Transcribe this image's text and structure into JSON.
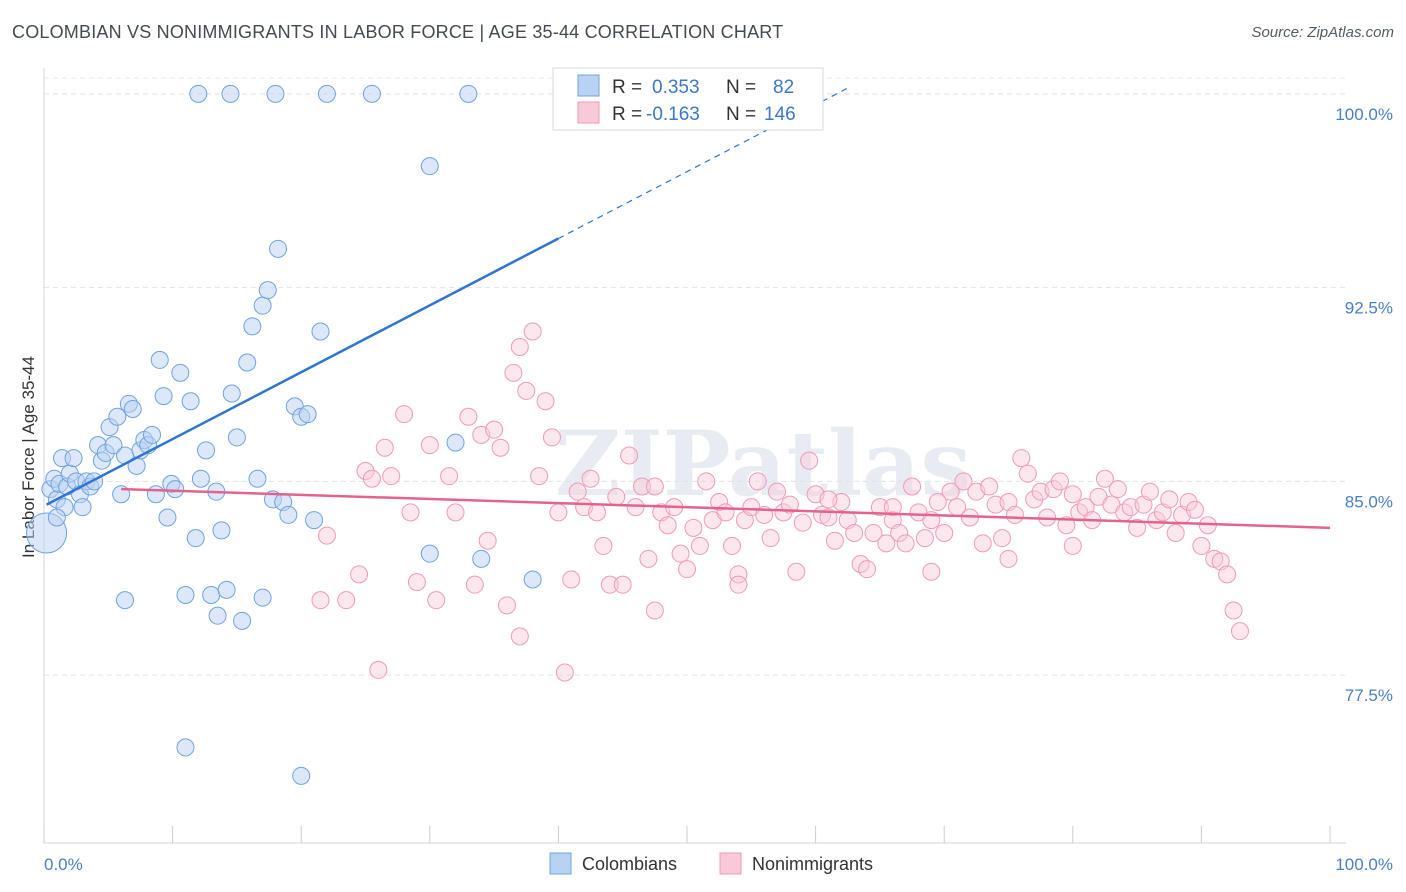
{
  "title": "COLOMBIAN VS NONIMMIGRANTS IN LABOR FORCE | AGE 35-44 CORRELATION CHART",
  "source": "Source: ZipAtlas.com",
  "watermark": "ZIPatlas",
  "colors": {
    "blue": "#6fa3e0",
    "blue_line": "#2f74d0",
    "pink": "#f19ab8",
    "pink_line": "#e4628f"
  },
  "chart_data": {
    "type": "scatter",
    "ylabel": "In Labor Force | Age 35-44",
    "xlim": [
      0,
      100
    ],
    "ylim": [
      71.0,
      101.0
    ],
    "y_ticks": [
      {
        "value": 100.0,
        "label": "100.0%"
      },
      {
        "value": 92.5,
        "label": "92.5%"
      },
      {
        "value": 85.0,
        "label": "85.0%"
      },
      {
        "value": 77.5,
        "label": "77.5%"
      }
    ],
    "x_tick_labels": [
      "0.0%",
      "100.0%"
    ],
    "legend": {
      "rows": [
        {
          "r_label": "R = ",
          "r_value": "0.353",
          "n_label": "N = ",
          "n_value": "82"
        },
        {
          "r_label": "R = ",
          "r_value": "-0.163",
          "n_label": "N = ",
          "n_value": "146"
        }
      ]
    },
    "series": [
      {
        "name": "Colombians",
        "trend": {
          "x0": 0.2,
          "y0": 84.1,
          "x1": 40.0,
          "y1": 94.4,
          "x_dash_end": 62.5
        },
        "points": [
          [
            0.2,
            83.0
          ],
          [
            0.5,
            84.7
          ],
          [
            0.8,
            85.1
          ],
          [
            1.0,
            84.3
          ],
          [
            1.2,
            84.9
          ],
          [
            1.4,
            85.9
          ],
          [
            1.6,
            84.0
          ],
          [
            1.8,
            84.8
          ],
          [
            2.0,
            85.3
          ],
          [
            2.3,
            85.9
          ],
          [
            2.5,
            85.0
          ],
          [
            2.8,
            84.5
          ],
          [
            3.0,
            84.0
          ],
          [
            3.3,
            85.0
          ],
          [
            3.6,
            84.8
          ],
          [
            3.9,
            85.0
          ],
          [
            4.2,
            86.4
          ],
          [
            4.5,
            85.8
          ],
          [
            4.8,
            86.1
          ],
          [
            5.1,
            87.1
          ],
          [
            5.4,
            86.4
          ],
          [
            5.7,
            87.5
          ],
          [
            6.0,
            84.5
          ],
          [
            6.3,
            86.0
          ],
          [
            6.6,
            88.0
          ],
          [
            6.9,
            87.8
          ],
          [
            7.2,
            85.6
          ],
          [
            7.5,
            86.2
          ],
          [
            7.8,
            86.6
          ],
          [
            8.1,
            86.4
          ],
          [
            8.4,
            86.8
          ],
          [
            8.7,
            84.5
          ],
          [
            9.0,
            89.7
          ],
          [
            9.3,
            88.3
          ],
          [
            9.6,
            83.6
          ],
          [
            9.9,
            84.9
          ],
          [
            10.2,
            84.7
          ],
          [
            10.6,
            89.2
          ],
          [
            11.0,
            80.6
          ],
          [
            11.4,
            88.1
          ],
          [
            11.8,
            82.8
          ],
          [
            12.2,
            85.1
          ],
          [
            12.6,
            86.2
          ],
          [
            13.0,
            80.6
          ],
          [
            13.4,
            84.6
          ],
          [
            13.8,
            83.1
          ],
          [
            14.2,
            80.8
          ],
          [
            14.6,
            88.4
          ],
          [
            15.0,
            86.7
          ],
          [
            15.4,
            79.6
          ],
          [
            15.8,
            89.6
          ],
          [
            16.2,
            91.0
          ],
          [
            16.6,
            85.1
          ],
          [
            17.0,
            91.8
          ],
          [
            17.4,
            92.4
          ],
          [
            17.8,
            84.3
          ],
          [
            18.2,
            94.0
          ],
          [
            18.6,
            84.2
          ],
          [
            19.0,
            83.7
          ],
          [
            19.5,
            87.9
          ],
          [
            20.0,
            87.5
          ],
          [
            20.5,
            87.6
          ],
          [
            21.0,
            83.5
          ],
          [
            21.5,
            90.8
          ],
          [
            11.0,
            74.7
          ],
          [
            20.0,
            73.6
          ],
          [
            13.5,
            79.8
          ],
          [
            17.0,
            80.5
          ],
          [
            32.0,
            86.5
          ],
          [
            34.0,
            82.0
          ],
          [
            38.0,
            81.2
          ],
          [
            30.0,
            82.2
          ],
          [
            12.0,
            100.0
          ],
          [
            14.5,
            100.0
          ],
          [
            18.0,
            100.0
          ],
          [
            22.0,
            100.0
          ],
          [
            25.5,
            100.0
          ],
          [
            33.0,
            100.0
          ],
          [
            41.5,
            100.0
          ],
          [
            30.0,
            97.2
          ],
          [
            1.0,
            83.6
          ],
          [
            6.3,
            80.4
          ]
        ]
      },
      {
        "name": "Nonimmigrants",
        "trend": {
          "x0": 6.0,
          "y0": 84.7,
          "x1": 100.0,
          "y1": 83.2
        },
        "points": [
          [
            21.5,
            80.4
          ],
          [
            22.0,
            82.9
          ],
          [
            23.5,
            80.4
          ],
          [
            24.5,
            81.4
          ],
          [
            25.0,
            85.4
          ],
          [
            25.5,
            85.1
          ],
          [
            26.0,
            77.7
          ],
          [
            26.5,
            86.3
          ],
          [
            27.0,
            85.2
          ],
          [
            28.0,
            87.6
          ],
          [
            28.5,
            83.8
          ],
          [
            29.0,
            81.1
          ],
          [
            30.0,
            86.4
          ],
          [
            30.5,
            80.4
          ],
          [
            31.5,
            85.2
          ],
          [
            32.0,
            83.8
          ],
          [
            33.0,
            87.5
          ],
          [
            33.5,
            81.0
          ],
          [
            34.0,
            86.8
          ],
          [
            34.5,
            82.7
          ],
          [
            35.0,
            87.0
          ],
          [
            35.5,
            86.3
          ],
          [
            36.0,
            80.2
          ],
          [
            36.5,
            89.2
          ],
          [
            37.0,
            90.2
          ],
          [
            37.5,
            88.5
          ],
          [
            38.0,
            90.8
          ],
          [
            38.5,
            85.2
          ],
          [
            39.0,
            88.1
          ],
          [
            39.5,
            86.7
          ],
          [
            40.0,
            83.8
          ],
          [
            40.5,
            77.6
          ],
          [
            41.0,
            81.2
          ],
          [
            41.5,
            84.6
          ],
          [
            42.0,
            84.0
          ],
          [
            42.5,
            85.1
          ],
          [
            43.0,
            83.8
          ],
          [
            43.5,
            82.5
          ],
          [
            44.0,
            81.0
          ],
          [
            44.5,
            84.4
          ],
          [
            45.0,
            81.0
          ],
          [
            45.5,
            86.0
          ],
          [
            46.0,
            84.0
          ],
          [
            46.5,
            84.8
          ],
          [
            47.0,
            82.0
          ],
          [
            47.5,
            84.8
          ],
          [
            48.0,
            83.8
          ],
          [
            48.5,
            83.3
          ],
          [
            49.0,
            84.0
          ],
          [
            49.5,
            82.2
          ],
          [
            50.0,
            81.6
          ],
          [
            50.5,
            83.2
          ],
          [
            51.0,
            82.5
          ],
          [
            51.5,
            85.0
          ],
          [
            52.0,
            83.5
          ],
          [
            52.5,
            84.2
          ],
          [
            53.0,
            83.8
          ],
          [
            53.5,
            82.5
          ],
          [
            54.0,
            81.4
          ],
          [
            54.5,
            83.5
          ],
          [
            55.0,
            84.0
          ],
          [
            55.5,
            85.0
          ],
          [
            56.0,
            83.7
          ],
          [
            56.5,
            82.8
          ],
          [
            57.0,
            84.6
          ],
          [
            57.5,
            83.8
          ],
          [
            58.0,
            84.1
          ],
          [
            58.5,
            81.5
          ],
          [
            59.0,
            83.4
          ],
          [
            59.5,
            85.8
          ],
          [
            60.0,
            84.5
          ],
          [
            60.5,
            83.7
          ],
          [
            61.0,
            83.6
          ],
          [
            61.5,
            82.7
          ],
          [
            62.0,
            84.2
          ],
          [
            62.5,
            83.5
          ],
          [
            63.0,
            83.0
          ],
          [
            63.5,
            81.8
          ],
          [
            64.0,
            81.6
          ],
          [
            64.5,
            83.0
          ],
          [
            65.0,
            84.0
          ],
          [
            65.5,
            82.6
          ],
          [
            66.0,
            83.5
          ],
          [
            66.5,
            83.0
          ],
          [
            67.0,
            82.6
          ],
          [
            67.5,
            84.8
          ],
          [
            68.0,
            83.8
          ],
          [
            68.5,
            82.8
          ],
          [
            69.0,
            83.5
          ],
          [
            69.5,
            84.2
          ],
          [
            70.0,
            83.0
          ],
          [
            70.5,
            84.6
          ],
          [
            71.0,
            84.0
          ],
          [
            71.5,
            85.0
          ],
          [
            72.0,
            83.6
          ],
          [
            72.5,
            84.6
          ],
          [
            73.0,
            82.6
          ],
          [
            73.5,
            84.8
          ],
          [
            74.0,
            84.1
          ],
          [
            74.5,
            82.8
          ],
          [
            75.0,
            84.2
          ],
          [
            75.5,
            83.7
          ],
          [
            76.0,
            85.9
          ],
          [
            76.5,
            85.3
          ],
          [
            77.0,
            84.3
          ],
          [
            77.5,
            84.6
          ],
          [
            78.0,
            83.6
          ],
          [
            78.5,
            84.7
          ],
          [
            79.0,
            85.0
          ],
          [
            79.5,
            83.3
          ],
          [
            80.0,
            84.5
          ],
          [
            80.5,
            83.8
          ],
          [
            81.0,
            84.0
          ],
          [
            81.5,
            83.5
          ],
          [
            82.0,
            84.4
          ],
          [
            82.5,
            85.1
          ],
          [
            83.0,
            84.1
          ],
          [
            83.5,
            84.7
          ],
          [
            84.0,
            83.8
          ],
          [
            84.5,
            84.0
          ],
          [
            85.0,
            83.2
          ],
          [
            85.5,
            84.1
          ],
          [
            86.0,
            84.6
          ],
          [
            86.5,
            83.5
          ],
          [
            87.0,
            83.8
          ],
          [
            87.5,
            84.3
          ],
          [
            88.0,
            83.0
          ],
          [
            88.5,
            83.7
          ],
          [
            89.0,
            84.2
          ],
          [
            89.5,
            83.9
          ],
          [
            90.0,
            82.5
          ],
          [
            90.5,
            83.3
          ],
          [
            91.0,
            82.0
          ],
          [
            91.5,
            81.9
          ],
          [
            92.0,
            81.4
          ],
          [
            92.5,
            80.0
          ],
          [
            93.0,
            79.2
          ],
          [
            66.0,
            84.0
          ],
          [
            69.0,
            81.5
          ],
          [
            54.0,
            81.0
          ],
          [
            61.0,
            84.3
          ],
          [
            37.0,
            79.0
          ],
          [
            47.5,
            80.0
          ],
          [
            75.0,
            82.0
          ],
          [
            80.0,
            82.5
          ]
        ]
      }
    ]
  }
}
